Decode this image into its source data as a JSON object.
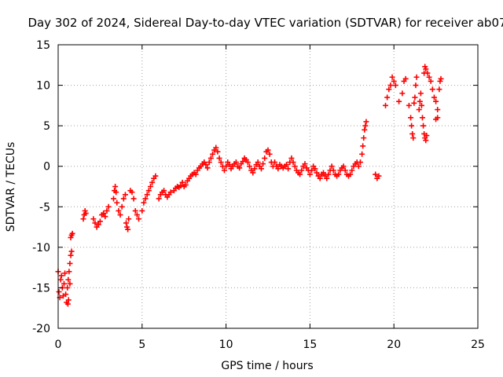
{
  "chart_data": {
    "type": "scatter",
    "title": "Day 302 of 2024, Sidereal Day-to-day VTEC variation (SDTVAR) for receiver ab07",
    "xlabel": "GPS time / hours",
    "ylabel": "SDTVAR / TECUs",
    "xlim": [
      0,
      25
    ],
    "ylim": [
      -20,
      15
    ],
    "xticks": [
      0,
      5,
      10,
      15,
      20,
      25
    ],
    "yticks": [
      -20,
      -15,
      -10,
      -5,
      0,
      5,
      10,
      15
    ],
    "grid": true,
    "marker": "+",
    "color": "#ff0000",
    "series": [
      {
        "name": "SDTVAR",
        "points": [
          [
            0.0,
            -13.0
          ],
          [
            0.05,
            -15.5
          ],
          [
            0.1,
            -16.2
          ],
          [
            0.15,
            -14.0
          ],
          [
            0.2,
            -13.5
          ],
          [
            0.25,
            -15.0
          ],
          [
            0.3,
            -16.0
          ],
          [
            0.35,
            -14.5
          ],
          [
            0.4,
            -13.2
          ],
          [
            0.45,
            -15.8
          ],
          [
            0.5,
            -16.8
          ],
          [
            0.55,
            -15.0
          ],
          [
            0.6,
            -14.0
          ],
          [
            0.65,
            -13.0
          ],
          [
            0.7,
            -12.0
          ],
          [
            0.75,
            -11.0
          ],
          [
            0.8,
            -10.5
          ],
          [
            0.62,
            -16.5
          ],
          [
            0.58,
            -17.0
          ],
          [
            0.7,
            -14.5
          ],
          [
            0.75,
            -8.8
          ],
          [
            0.8,
            -8.5
          ],
          [
            0.85,
            -8.3
          ],
          [
            1.5,
            -6.5
          ],
          [
            1.55,
            -6.0
          ],
          [
            1.6,
            -5.5
          ],
          [
            1.65,
            -5.8
          ],
          [
            2.1,
            -6.5
          ],
          [
            2.2,
            -7.0
          ],
          [
            2.3,
            -7.5
          ],
          [
            2.4,
            -7.2
          ],
          [
            2.5,
            -6.8
          ],
          [
            2.6,
            -6.0
          ],
          [
            2.7,
            -5.8
          ],
          [
            2.8,
            -6.2
          ],
          [
            2.9,
            -5.5
          ],
          [
            3.0,
            -5.0
          ],
          [
            3.3,
            -4.0
          ],
          [
            3.35,
            -3.0
          ],
          [
            3.4,
            -2.5
          ],
          [
            3.45,
            -3.2
          ],
          [
            3.5,
            -4.5
          ],
          [
            3.6,
            -5.5
          ],
          [
            3.7,
            -6.0
          ],
          [
            3.8,
            -5.0
          ],
          [
            3.9,
            -4.0
          ],
          [
            4.0,
            -3.5
          ],
          [
            4.05,
            -7.0
          ],
          [
            4.1,
            -7.5
          ],
          [
            4.15,
            -7.8
          ],
          [
            4.2,
            -6.5
          ],
          [
            4.3,
            -3.0
          ],
          [
            4.4,
            -3.2
          ],
          [
            4.5,
            -4.0
          ],
          [
            4.6,
            -5.5
          ],
          [
            4.7,
            -6.0
          ],
          [
            4.8,
            -6.5
          ],
          [
            5.0,
            -5.5
          ],
          [
            5.1,
            -4.5
          ],
          [
            5.2,
            -4.0
          ],
          [
            5.3,
            -3.5
          ],
          [
            5.4,
            -3.0
          ],
          [
            5.5,
            -2.5
          ],
          [
            5.6,
            -2.0
          ],
          [
            5.7,
            -1.5
          ],
          [
            5.8,
            -1.2
          ],
          [
            6.0,
            -4.0
          ],
          [
            6.1,
            -3.5
          ],
          [
            6.2,
            -3.2
          ],
          [
            6.3,
            -3.0
          ],
          [
            6.4,
            -3.5
          ],
          [
            6.5,
            -3.8
          ],
          [
            6.6,
            -3.5
          ],
          [
            6.7,
            -3.2
          ],
          [
            6.9,
            -3.0
          ],
          [
            7.0,
            -2.7
          ],
          [
            7.1,
            -2.5
          ],
          [
            7.2,
            -2.6
          ],
          [
            7.3,
            -2.4
          ],
          [
            7.4,
            -2.0
          ],
          [
            7.5,
            -2.5
          ],
          [
            7.6,
            -2.3
          ],
          [
            7.7,
            -1.8
          ],
          [
            7.8,
            -1.5
          ],
          [
            7.9,
            -1.2
          ],
          [
            8.0,
            -1.0
          ],
          [
            8.1,
            -0.8
          ],
          [
            8.2,
            -1.0
          ],
          [
            8.3,
            -0.5
          ],
          [
            8.4,
            -0.2
          ],
          [
            8.5,
            0.0
          ],
          [
            8.6,
            0.3
          ],
          [
            8.7,
            0.5
          ],
          [
            8.8,
            0.2
          ],
          [
            8.9,
            -0.2
          ],
          [
            9.0,
            0.5
          ],
          [
            9.1,
            1.0
          ],
          [
            9.2,
            1.5
          ],
          [
            9.3,
            2.0
          ],
          [
            9.4,
            2.3
          ],
          [
            9.5,
            1.8
          ],
          [
            9.6,
            1.0
          ],
          [
            9.7,
            0.5
          ],
          [
            9.8,
            0.0
          ],
          [
            9.9,
            -0.5
          ],
          [
            10.0,
            0.0
          ],
          [
            10.1,
            0.5
          ],
          [
            10.2,
            0.2
          ],
          [
            10.3,
            -0.3
          ],
          [
            10.4,
            0.0
          ],
          [
            10.5,
            0.3
          ],
          [
            10.6,
            0.5
          ],
          [
            10.7,
            0.0
          ],
          [
            10.8,
            -0.2
          ],
          [
            10.9,
            0.3
          ],
          [
            11.0,
            0.6
          ],
          [
            11.1,
            1.0
          ],
          [
            11.2,
            0.8
          ],
          [
            11.3,
            0.5
          ],
          [
            11.4,
            0.0
          ],
          [
            11.5,
            -0.5
          ],
          [
            11.6,
            -0.8
          ],
          [
            11.7,
            -0.3
          ],
          [
            11.8,
            0.2
          ],
          [
            11.9,
            0.5
          ],
          [
            12.0,
            0.0
          ],
          [
            12.1,
            -0.3
          ],
          [
            12.2,
            0.3
          ],
          [
            12.3,
            1.0
          ],
          [
            12.4,
            1.8
          ],
          [
            12.5,
            2.0
          ],
          [
            12.6,
            1.5
          ],
          [
            12.7,
            0.5
          ],
          [
            12.8,
            0.0
          ],
          [
            12.9,
            0.5
          ],
          [
            13.0,
            0.0
          ],
          [
            13.1,
            -0.3
          ],
          [
            13.2,
            0.2
          ],
          [
            13.3,
            0.0
          ],
          [
            13.4,
            -0.2
          ],
          [
            13.5,
            0.0
          ],
          [
            13.6,
            0.2
          ],
          [
            13.7,
            -0.3
          ],
          [
            13.8,
            0.5
          ],
          [
            13.9,
            1.0
          ],
          [
            14.0,
            0.5
          ],
          [
            14.1,
            0.0
          ],
          [
            14.2,
            -0.5
          ],
          [
            14.3,
            -0.8
          ],
          [
            14.4,
            -1.0
          ],
          [
            14.5,
            -0.5
          ],
          [
            14.6,
            0.0
          ],
          [
            14.7,
            0.3
          ],
          [
            14.8,
            -0.2
          ],
          [
            14.9,
            -0.5
          ],
          [
            15.0,
            -1.0
          ],
          [
            15.1,
            -0.5
          ],
          [
            15.2,
            0.0
          ],
          [
            15.3,
            -0.3
          ],
          [
            15.4,
            -0.8
          ],
          [
            15.5,
            -1.2
          ],
          [
            15.6,
            -1.5
          ],
          [
            15.7,
            -1.0
          ],
          [
            15.8,
            -0.8
          ],
          [
            15.9,
            -1.2
          ],
          [
            16.0,
            -1.5
          ],
          [
            16.1,
            -1.0
          ],
          [
            16.2,
            -0.5
          ],
          [
            16.3,
            0.0
          ],
          [
            16.4,
            -0.5
          ],
          [
            16.5,
            -1.0
          ],
          [
            16.6,
            -1.2
          ],
          [
            16.7,
            -1.0
          ],
          [
            16.8,
            -0.5
          ],
          [
            16.9,
            -0.2
          ],
          [
            17.0,
            0.0
          ],
          [
            17.1,
            -0.5
          ],
          [
            17.2,
            -1.0
          ],
          [
            17.3,
            -1.2
          ],
          [
            17.4,
            -1.0
          ],
          [
            17.5,
            -0.5
          ],
          [
            17.6,
            0.0
          ],
          [
            17.7,
            0.3
          ],
          [
            17.8,
            0.5
          ],
          [
            17.9,
            0.0
          ],
          [
            18.0,
            0.5
          ],
          [
            18.1,
            1.5
          ],
          [
            18.15,
            2.5
          ],
          [
            18.2,
            3.5
          ],
          [
            18.25,
            4.5
          ],
          [
            18.3,
            5.0
          ],
          [
            18.35,
            5.5
          ],
          [
            18.9,
            -1.0
          ],
          [
            19.0,
            -1.5
          ],
          [
            19.1,
            -1.2
          ],
          [
            19.5,
            7.5
          ],
          [
            19.6,
            8.5
          ],
          [
            19.7,
            9.5
          ],
          [
            19.8,
            10.0
          ],
          [
            19.9,
            11.0
          ],
          [
            20.0,
            10.5
          ],
          [
            20.1,
            10.0
          ],
          [
            20.3,
            8.0
          ],
          [
            20.5,
            9.0
          ],
          [
            20.6,
            10.5
          ],
          [
            20.7,
            10.8
          ],
          [
            20.9,
            7.5
          ],
          [
            21.0,
            6.0
          ],
          [
            21.05,
            5.0
          ],
          [
            21.1,
            4.0
          ],
          [
            21.15,
            3.5
          ],
          [
            21.2,
            7.8
          ],
          [
            21.25,
            8.5
          ],
          [
            21.3,
            10.0
          ],
          [
            21.35,
            11.0
          ],
          [
            21.5,
            7.0
          ],
          [
            21.55,
            8.0
          ],
          [
            21.6,
            9.0
          ],
          [
            21.65,
            7.5
          ],
          [
            21.7,
            6.0
          ],
          [
            21.75,
            5.0
          ],
          [
            21.8,
            4.0
          ],
          [
            21.85,
            3.5
          ],
          [
            21.9,
            3.2
          ],
          [
            21.95,
            3.8
          ],
          [
            21.8,
            11.5
          ],
          [
            21.85,
            12.3
          ],
          [
            21.9,
            12.0
          ],
          [
            22.0,
            11.5
          ],
          [
            22.1,
            11.0
          ],
          [
            22.2,
            10.5
          ],
          [
            22.3,
            9.5
          ],
          [
            22.4,
            8.5
          ],
          [
            22.5,
            8.0
          ],
          [
            22.6,
            7.0
          ],
          [
            22.7,
            9.5
          ],
          [
            22.75,
            10.5
          ],
          [
            22.8,
            10.8
          ],
          [
            22.5,
            5.8
          ],
          [
            22.6,
            6.0
          ]
        ]
      }
    ]
  }
}
